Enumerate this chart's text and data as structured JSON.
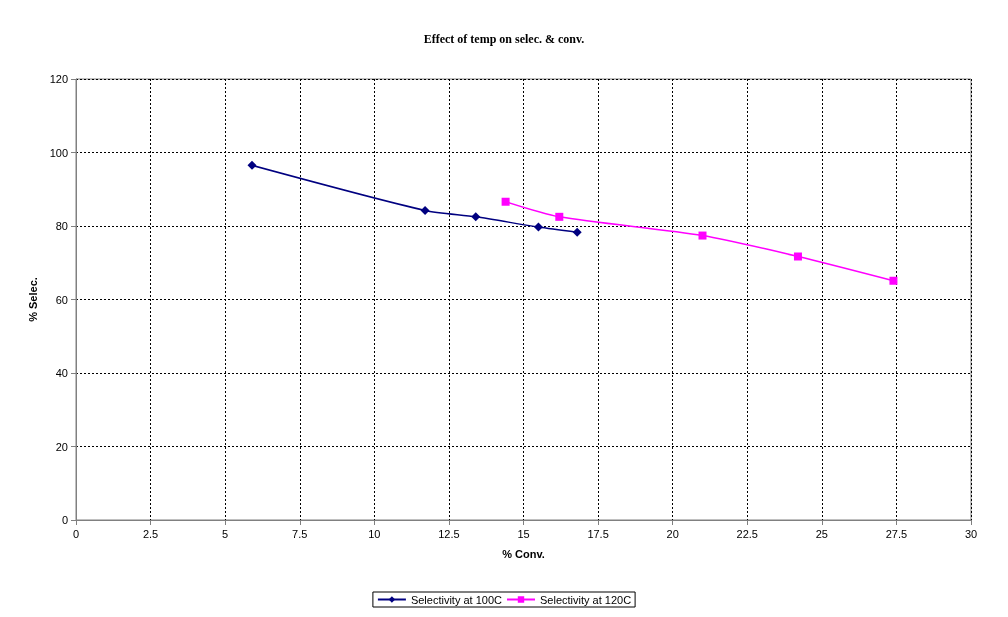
{
  "chart_data": {
    "type": "line",
    "title": "Effect of temp on selec. & conv.",
    "xlabel": "% Conv.",
    "ylabel": "% Selec.",
    "xlim": [
      0,
      30
    ],
    "xticks": [
      0,
      2.5,
      5,
      7.5,
      10,
      12.5,
      15,
      17.5,
      20,
      22.5,
      25,
      27.5,
      30
    ],
    "ylim": [
      0,
      120
    ],
    "yticks": [
      0,
      20,
      40,
      60,
      80,
      100,
      120
    ],
    "grid": true,
    "legend": "bottom",
    "line_style": "solid",
    "series": [
      {
        "name": "Selectivity at 100C",
        "color": "#000080",
        "marker": "diamond",
        "x": [
          5.9,
          11.7,
          13.4,
          15.5,
          16.8
        ],
        "values": [
          96.5,
          84.2,
          82.5,
          79.7,
          78.3
        ]
      },
      {
        "name": "Selectivity at 120C",
        "color": "#ff00ff",
        "marker": "square",
        "x": [
          14.4,
          16.2,
          21.0,
          24.2,
          27.4
        ],
        "values": [
          86.6,
          82.5,
          77.4,
          71.7,
          65.1
        ]
      }
    ]
  }
}
